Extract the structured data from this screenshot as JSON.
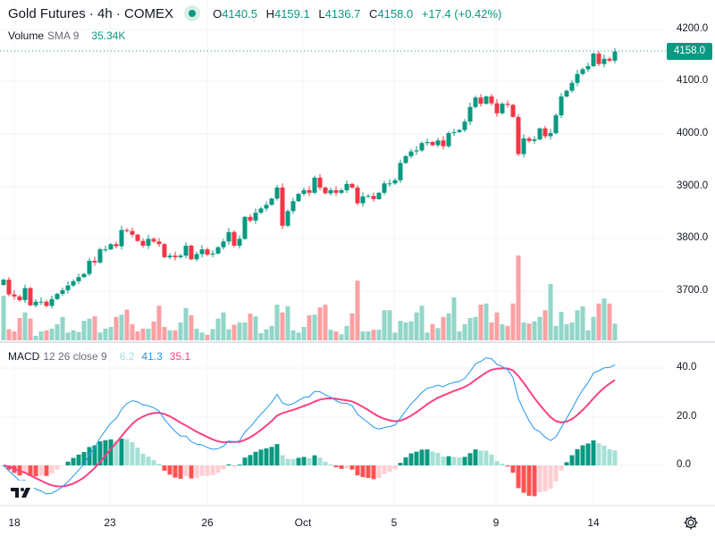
{
  "header": {
    "symbol_title": "Gold Futures · 4h · COMEX",
    "ohlc": {
      "o_label": "O",
      "o": "4140.5",
      "h_label": "H",
      "h": "4159.1",
      "l_label": "L",
      "l": "4136.7",
      "c_label": "C",
      "c": "4158.0",
      "change": "+17.4 (+0.42%)"
    }
  },
  "volume_legend": {
    "name": "Volume",
    "params": "SMA 9",
    "value": "35.34K"
  },
  "macd_legend": {
    "name": "MACD",
    "params": "12 26 close 9",
    "histogram": "6.2",
    "macd": "41.3",
    "signal": "35.1"
  },
  "price_axis": {
    "labels": [
      "4200.0",
      "4100.0",
      "4000.0",
      "3900.0",
      "3800.0",
      "3700.0"
    ],
    "current_price": "4158.0"
  },
  "macd_axis": {
    "labels": [
      "40.0",
      "20.0",
      "0.0"
    ]
  },
  "time_axis": {
    "labels": [
      "18",
      "23",
      "26",
      "Oct",
      "5",
      "9",
      "14"
    ]
  },
  "colors": {
    "up": "#089981",
    "down": "#f23645",
    "vol_up": "#92d6c9",
    "vol_down": "#faa1a4",
    "macd": "#2196f3",
    "signal": "#ff4081",
    "hist_up_strong": "#089981",
    "hist_up_weak": "#a6e0d6",
    "hist_down_strong": "#ff5252",
    "hist_down_weak": "#ffcdd2"
  },
  "icons": {
    "settings": "gear-icon",
    "logo": "tradingview-logo"
  },
  "chart_data": {
    "type": "candlestick",
    "title": "Gold Futures · 4h · COMEX",
    "ylim": [
      3620,
      4230
    ],
    "first_open": 3712,
    "close": [
      3722,
      3694,
      3690,
      3683,
      3706,
      3673,
      3680,
      3680,
      3672,
      3685,
      3695,
      3702,
      3711,
      3719,
      3727,
      3733,
      3758,
      3755,
      3780,
      3780,
      3790,
      3786,
      3817,
      3815,
      3808,
      3796,
      3787,
      3800,
      3795,
      3790,
      3765,
      3768,
      3765,
      3768,
      3787,
      3761,
      3771,
      3780,
      3770,
      3772,
      3784,
      3795,
      3813,
      3787,
      3800,
      3842,
      3835,
      3850,
      3858,
      3865,
      3877,
      3898,
      3825,
      3853,
      3872,
      3886,
      3893,
      3888,
      3917,
      3898,
      3887,
      3893,
      3888,
      3893,
      3905,
      3898,
      3868,
      3881,
      3882,
      3876,
      3888,
      3906,
      3906,
      3912,
      3945,
      3958,
      3967,
      3969,
      3983,
      3985,
      3979,
      3988,
      3977,
      4002,
      4004,
      4008,
      4024,
      4052,
      4070,
      4058,
      4072,
      4059,
      4040,
      4058,
      4056,
      4033,
      3962,
      3992,
      3987,
      3990,
      4011,
      3996,
      4002,
      4036,
      4072,
      4083,
      4098,
      4115,
      4124,
      4130,
      4154,
      4134,
      4144,
      4140.5,
      4158
    ],
    "volume_k": [
      80,
      20,
      16,
      40,
      50,
      39,
      8,
      16,
      18,
      21,
      29,
      42,
      14,
      18,
      15,
      35,
      39,
      43,
      14,
      21,
      24,
      42,
      46,
      55,
      29,
      16,
      21,
      21,
      34,
      62,
      24,
      18,
      18,
      32,
      58,
      45,
      21,
      14,
      10,
      20,
      39,
      50,
      20,
      28,
      32,
      32,
      48,
      43,
      13,
      20,
      26,
      64,
      50,
      61,
      18,
      14,
      24,
      45,
      46,
      59,
      64,
      19,
      16,
      11,
      26,
      48,
      107,
      16,
      16,
      19,
      19,
      54,
      54,
      14,
      35,
      32,
      34,
      50,
      62,
      14,
      29,
      22,
      42,
      48,
      77,
      16,
      29,
      40,
      42,
      64,
      66,
      32,
      50,
      29,
      26,
      66,
      152,
      32,
      30,
      34,
      42,
      54,
      101,
      26,
      51,
      29,
      32,
      54,
      61,
      18,
      42,
      66,
      75,
      66,
      30
    ],
    "macd_params": {
      "fast": 12,
      "slow": 26,
      "signal": 9
    },
    "macd_ylim": [
      -20,
      45
    ]
  }
}
